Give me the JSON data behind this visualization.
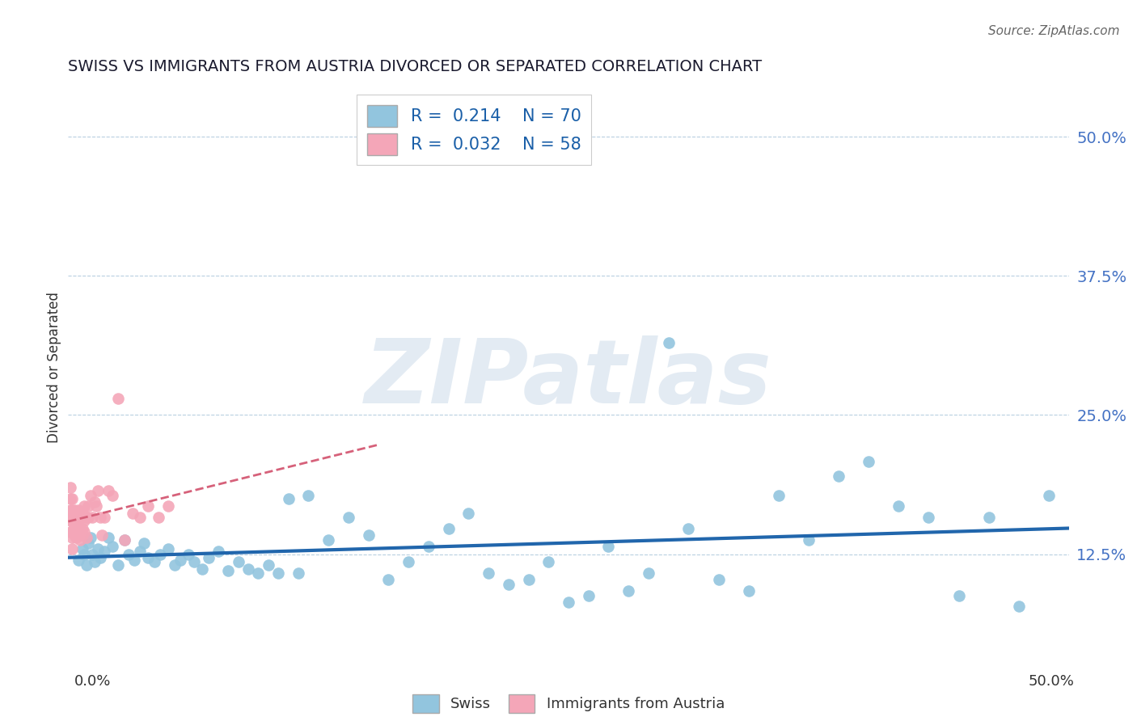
{
  "title": "SWISS VS IMMIGRANTS FROM AUSTRIA DIVORCED OR SEPARATED CORRELATION CHART",
  "source": "Source: ZipAtlas.com",
  "ylabel": "Divorced or Separated",
  "xlim": [
    0.0,
    0.5
  ],
  "ylim": [
    0.04,
    0.545
  ],
  "yticks": [
    0.125,
    0.25,
    0.375,
    0.5
  ],
  "ytick_labels": [
    "12.5%",
    "25.0%",
    "37.5%",
    "50.0%"
  ],
  "legend_r1": "R =  0.214",
  "legend_n1": "N = 70",
  "legend_r2": "R =  0.032",
  "legend_n2": "N = 58",
  "blue_color": "#92c5de",
  "pink_color": "#f4a6b8",
  "trend_blue": "#2166ac",
  "trend_pink": "#d6617a",
  "swiss_x": [
    0.005,
    0.007,
    0.008,
    0.009,
    0.01,
    0.011,
    0.012,
    0.013,
    0.015,
    0.016,
    0.018,
    0.02,
    0.022,
    0.025,
    0.028,
    0.03,
    0.033,
    0.036,
    0.038,
    0.04,
    0.043,
    0.046,
    0.05,
    0.053,
    0.056,
    0.06,
    0.063,
    0.067,
    0.07,
    0.075,
    0.08,
    0.085,
    0.09,
    0.095,
    0.1,
    0.105,
    0.11,
    0.115,
    0.12,
    0.13,
    0.14,
    0.15,
    0.16,
    0.17,
    0.18,
    0.19,
    0.2,
    0.21,
    0.22,
    0.23,
    0.24,
    0.25,
    0.26,
    0.27,
    0.28,
    0.29,
    0.3,
    0.31,
    0.325,
    0.34,
    0.355,
    0.37,
    0.385,
    0.4,
    0.415,
    0.43,
    0.445,
    0.46,
    0.475,
    0.49
  ],
  "swiss_y": [
    0.12,
    0.13,
    0.125,
    0.115,
    0.135,
    0.14,
    0.125,
    0.118,
    0.13,
    0.122,
    0.128,
    0.14,
    0.132,
    0.115,
    0.138,
    0.125,
    0.12,
    0.128,
    0.135,
    0.122,
    0.118,
    0.125,
    0.13,
    0.115,
    0.12,
    0.125,
    0.118,
    0.112,
    0.122,
    0.128,
    0.11,
    0.118,
    0.112,
    0.108,
    0.115,
    0.108,
    0.175,
    0.108,
    0.178,
    0.138,
    0.158,
    0.142,
    0.102,
    0.118,
    0.132,
    0.148,
    0.162,
    0.108,
    0.098,
    0.102,
    0.118,
    0.082,
    0.088,
    0.132,
    0.092,
    0.108,
    0.315,
    0.148,
    0.102,
    0.092,
    0.178,
    0.138,
    0.195,
    0.208,
    0.168,
    0.158,
    0.088,
    0.158,
    0.078,
    0.178
  ],
  "austria_x": [
    0.001,
    0.001,
    0.001,
    0.001,
    0.001,
    0.001,
    0.002,
    0.002,
    0.002,
    0.002,
    0.002,
    0.002,
    0.002,
    0.003,
    0.003,
    0.003,
    0.003,
    0.003,
    0.003,
    0.004,
    0.004,
    0.004,
    0.004,
    0.004,
    0.005,
    0.005,
    0.005,
    0.005,
    0.006,
    0.006,
    0.006,
    0.007,
    0.007,
    0.007,
    0.008,
    0.008,
    0.008,
    0.009,
    0.009,
    0.01,
    0.01,
    0.011,
    0.012,
    0.013,
    0.014,
    0.015,
    0.016,
    0.017,
    0.018,
    0.02,
    0.022,
    0.025,
    0.028,
    0.032,
    0.036,
    0.04,
    0.045,
    0.05
  ],
  "austria_y": [
    0.155,
    0.165,
    0.175,
    0.185,
    0.145,
    0.16,
    0.14,
    0.155,
    0.165,
    0.175,
    0.13,
    0.145,
    0.158,
    0.15,
    0.158,
    0.148,
    0.155,
    0.165,
    0.142,
    0.145,
    0.155,
    0.14,
    0.162,
    0.145,
    0.155,
    0.165,
    0.142,
    0.158,
    0.148,
    0.158,
    0.138,
    0.142,
    0.162,
    0.148,
    0.145,
    0.168,
    0.155,
    0.14,
    0.158,
    0.158,
    0.168,
    0.178,
    0.158,
    0.172,
    0.168,
    0.182,
    0.158,
    0.142,
    0.158,
    0.182,
    0.178,
    0.265,
    0.138,
    0.162,
    0.158,
    0.168,
    0.158,
    0.168
  ]
}
